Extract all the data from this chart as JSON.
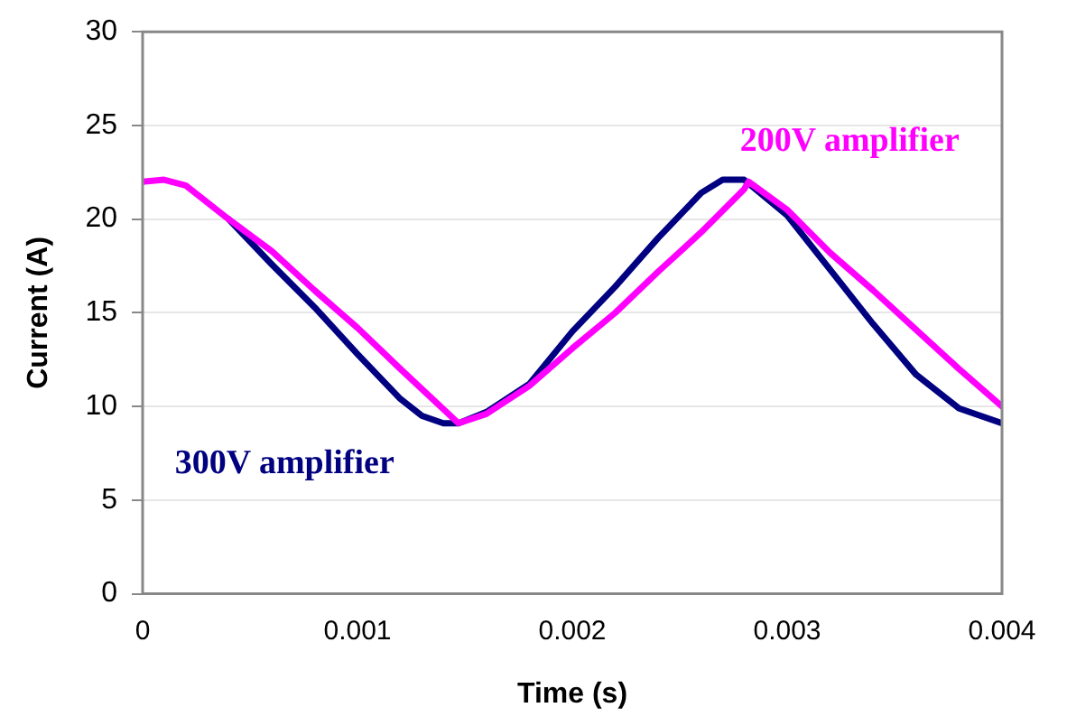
{
  "chart_data": {
    "type": "line",
    "xlabel": "Time (s)",
    "ylabel": "Current (A)",
    "xlim": [
      0,
      0.004
    ],
    "xticks": [
      0,
      0.001,
      0.002,
      0.003,
      0.004
    ],
    "ylim": [
      0,
      30
    ],
    "yticks": [
      0,
      5,
      10,
      15,
      20,
      25,
      30
    ],
    "grid": "y",
    "legend": false,
    "marker": "none",
    "line_style": "solid",
    "series": [
      {
        "name": "300V amplifier",
        "color": "#000080",
        "x": [
          0.0004,
          0.0006,
          0.0008,
          0.001,
          0.0012,
          0.0013,
          0.0014,
          0.00147,
          0.0016,
          0.0018,
          0.002,
          0.0022,
          0.0024,
          0.0026,
          0.0027,
          0.0028,
          0.003,
          0.0032,
          0.0034,
          0.0036,
          0.0038,
          0.004
        ],
        "values": [
          20.0,
          17.6,
          15.3,
          12.8,
          10.4,
          9.5,
          9.1,
          9.1,
          9.7,
          11.2,
          14.0,
          16.4,
          19.0,
          21.4,
          22.1,
          22.1,
          20.2,
          17.3,
          14.4,
          11.7,
          9.9,
          9.1
        ]
      },
      {
        "name": "200V amplifier",
        "color": "#ff00ff",
        "x": [
          0,
          0.0001,
          0.0002,
          0.0004,
          0.0006,
          0.0008,
          0.001,
          0.0012,
          0.00147,
          0.0016,
          0.0018,
          0.002,
          0.0022,
          0.0024,
          0.0026,
          0.0028,
          0.00282,
          0.003,
          0.0032,
          0.0034,
          0.0036,
          0.0038,
          0.004
        ],
        "values": [
          22,
          22.1,
          21.8,
          20.0,
          18.3,
          16.2,
          14.2,
          12.0,
          9.1,
          9.6,
          11.1,
          13.1,
          15.0,
          17.2,
          19.3,
          21.6,
          22.0,
          20.5,
          18.2,
          16.2,
          14.1,
          12.0,
          10.0
        ]
      }
    ]
  }
}
